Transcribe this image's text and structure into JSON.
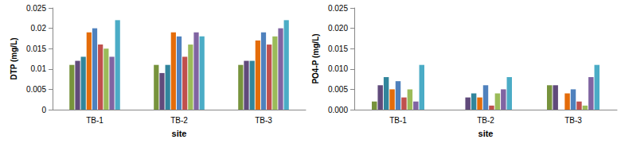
{
  "chart_data": [
    {
      "type": "bar",
      "y_label": "DTP (mg/L)",
      "x_label": "site",
      "categories": [
        "TB-1",
        "TB-2",
        "TB-3"
      ],
      "series": [
        {
          "color": "#77933C",
          "values": [
            0.011,
            0.011,
            0.011
          ]
        },
        {
          "color": "#604A7B",
          "values": [
            0.012,
            0.009,
            0.012
          ]
        },
        {
          "color": "#31859C",
          "values": [
            0.013,
            0.011,
            0.012
          ]
        },
        {
          "color": "#E46C0A",
          "values": [
            0.019,
            0.019,
            0.017
          ]
        },
        {
          "color": "#4F81BD",
          "values": [
            0.02,
            0.018,
            0.019
          ]
        },
        {
          "color": "#C0504D",
          "values": [
            0.016,
            0.013,
            0.016
          ]
        },
        {
          "color": "#9BBB59",
          "values": [
            0.015,
            0.016,
            0.018
          ]
        },
        {
          "color": "#8064A2",
          "values": [
            0.013,
            0.019,
            0.02
          ]
        },
        {
          "color": "#4BACC6",
          "values": [
            0.022,
            0.018,
            0.022
          ]
        }
      ],
      "ylim": [
        0,
        0.025
      ],
      "yticks": [
        0,
        0.005,
        0.01,
        0.015,
        0.02,
        0.025
      ],
      "grid": false
    },
    {
      "type": "bar",
      "y_label": "PO4-P (mg/L)",
      "x_label": "site",
      "categories": [
        "TB-1",
        "TB-2",
        "TB-3"
      ],
      "series": [
        {
          "color": "#77933C",
          "values": [
            0.002,
            0,
            0.006
          ]
        },
        {
          "color": "#604A7B",
          "values": [
            0.006,
            0.003,
            0.006
          ]
        },
        {
          "color": "#31859C",
          "values": [
            0.008,
            0.004,
            0
          ]
        },
        {
          "color": "#E46C0A",
          "values": [
            0.005,
            0.003,
            0.004
          ]
        },
        {
          "color": "#4F81BD",
          "values": [
            0.007,
            0.006,
            0.005
          ]
        },
        {
          "color": "#C0504D",
          "values": [
            0.003,
            0.001,
            0.002
          ]
        },
        {
          "color": "#9BBB59",
          "values": [
            0.005,
            0.004,
            0.001
          ]
        },
        {
          "color": "#8064A2",
          "values": [
            0.002,
            0.005,
            0.008
          ]
        },
        {
          "color": "#4BACC6",
          "values": [
            0.011,
            0.008,
            0.011
          ]
        }
      ],
      "ylim": [
        0,
        0.025
      ],
      "yticks": [
        {
          "value": 0,
          "label": "0.000"
        },
        {
          "value": 0.005,
          "label": "0.005"
        },
        {
          "value": 0.01,
          "label": "0.010"
        },
        {
          "value": 0.015,
          "label": "0.015"
        },
        {
          "value": 0.02,
          "label": "0.020"
        },
        {
          "value": 0.025,
          "label": "0.025"
        }
      ],
      "grid": false
    }
  ]
}
